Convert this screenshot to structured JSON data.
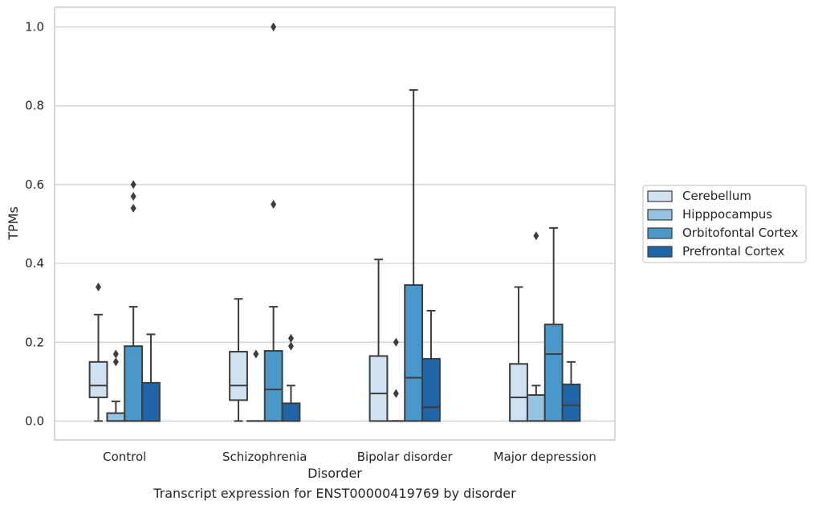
{
  "chart_data": {
    "type": "box",
    "caption": "Transcript expression for ENST00000419769 by disorder",
    "xlabel": "Disorder",
    "ylabel": "TPMs",
    "ylim": [
      -0.048,
      1.05
    ],
    "yticks": [
      "0.0",
      "0.2",
      "0.4",
      "0.6",
      "0.8",
      "1.0"
    ],
    "grid": true,
    "legend_position": "right",
    "categories": [
      "Control",
      "Schizophrenia",
      "Bipolar disorder",
      "Major depression"
    ],
    "series": [
      {
        "name": "Cerebellum",
        "color": "#d0e1f2",
        "boxes": [
          {
            "whisker_low": 0.0,
            "q1": 0.06,
            "median": 0.09,
            "q3": 0.15,
            "whisker_high": 0.27,
            "outliers": [
              0.34
            ]
          },
          {
            "whisker_low": 0.0,
            "q1": 0.053,
            "median": 0.09,
            "q3": 0.176,
            "whisker_high": 0.31,
            "outliers": []
          },
          {
            "whisker_low": 0.0,
            "q1": 0.0,
            "median": 0.07,
            "q3": 0.165,
            "whisker_high": 0.41,
            "outliers": []
          },
          {
            "whisker_low": 0.0,
            "q1": 0.0,
            "median": 0.06,
            "q3": 0.145,
            "whisker_high": 0.34,
            "outliers": []
          }
        ]
      },
      {
        "name": "Hipppocampus",
        "color": "#94c4df",
        "boxes": [
          {
            "whisker_low": 0.0,
            "q1": 0.0,
            "median": 0.0,
            "q3": 0.02,
            "whisker_high": 0.05,
            "outliers": [
              0.15,
              0.17
            ]
          },
          {
            "whisker_low": 0.0,
            "q1": 0.0,
            "median": 0.0,
            "q3": 0.0,
            "whisker_high": 0.0,
            "outliers": [
              0.17
            ]
          },
          {
            "whisker_low": 0.0,
            "q1": 0.0,
            "median": 0.0,
            "q3": 0.0,
            "whisker_high": 0.0,
            "outliers": [
              0.07,
              0.2
            ]
          },
          {
            "whisker_low": 0.0,
            "q1": 0.0,
            "median": 0.0,
            "q3": 0.066,
            "whisker_high": 0.09,
            "outliers": [
              0.47
            ]
          }
        ]
      },
      {
        "name": "Orbitofontal Cortex",
        "color": "#4a98c9",
        "boxes": [
          {
            "whisker_low": 0.0,
            "q1": 0.0,
            "median": 0.0,
            "q3": 0.19,
            "whisker_high": 0.29,
            "outliers": [
              0.54,
              0.57,
              0.6
            ]
          },
          {
            "whisker_low": 0.0,
            "q1": 0.0,
            "median": 0.08,
            "q3": 0.178,
            "whisker_high": 0.29,
            "outliers": [
              0.55,
              1.0
            ]
          },
          {
            "whisker_low": 0.0,
            "q1": 0.0,
            "median": 0.11,
            "q3": 0.345,
            "whisker_high": 0.84,
            "outliers": []
          },
          {
            "whisker_low": 0.0,
            "q1": 0.0,
            "median": 0.17,
            "q3": 0.245,
            "whisker_high": 0.49,
            "outliers": []
          }
        ]
      },
      {
        "name": "Prefrontal Cortex",
        "color": "#2165a9",
        "boxes": [
          {
            "whisker_low": 0.0,
            "q1": 0.0,
            "median": 0.0,
            "q3": 0.097,
            "whisker_high": 0.22,
            "outliers": []
          },
          {
            "whisker_low": 0.0,
            "q1": 0.0,
            "median": 0.0,
            "q3": 0.045,
            "whisker_high": 0.09,
            "outliers": [
              0.19,
              0.21
            ]
          },
          {
            "whisker_low": 0.0,
            "q1": 0.0,
            "median": 0.035,
            "q3": 0.158,
            "whisker_high": 0.28,
            "outliers": []
          },
          {
            "whisker_low": 0.0,
            "q1": 0.0,
            "median": 0.04,
            "q3": 0.093,
            "whisker_high": 0.15,
            "outliers": []
          }
        ]
      }
    ]
  }
}
